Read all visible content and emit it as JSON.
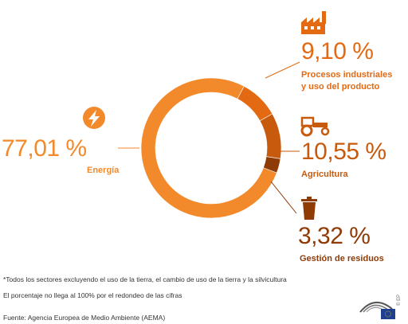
{
  "colors": {
    "energia": "#f28a2b",
    "procesos": "#e36a12",
    "agricultura": "#c75a0c",
    "residuos": "#8f3b06",
    "text_orange": "#f28a2b",
    "text_dark_orange": "#c75a0c",
    "text_brown": "#8f3b06"
  },
  "icons": {
    "energia": "lightning-bolt-icon",
    "procesos": "factory-icon",
    "agricultura": "tractor-icon",
    "residuos": "trash-can-icon",
    "logo": "european-parliament-logo-icon"
  },
  "chart_data": {
    "type": "pie",
    "donut": true,
    "series": [
      {
        "name": "Energía",
        "value_label": "77,01 %",
        "value": 77.01
      },
      {
        "name": "Procesos industriales y uso del producto",
        "value_label": "9,10 %",
        "value": 9.1
      },
      {
        "name": "Agricultura",
        "value_label": "10,55 %",
        "value": 10.55
      },
      {
        "name": "Gestión de residuos",
        "value_label": "3,32 %",
        "value": 3.32
      }
    ]
  },
  "labels": {
    "energia_pct": "77,01 %",
    "energia_name": "Energía",
    "procesos_pct": "9,10 %",
    "procesos_name_1": "Procesos industriales",
    "procesos_name_2": "y uso del producto",
    "agricultura_pct": "10,55 %",
    "agricultura_name": "Agricultura",
    "residuos_pct": "3,32 %",
    "residuos_name": "Gestión de residuos"
  },
  "footnotes": {
    "note1": "*Todos los sectores excluyendo el uso de la tierra, el cambio de uso de la tierra y la silvicultura",
    "note2": "El porcentaje no llega al 100% por el redondeo de las cifras",
    "source": "Fuente: Agencia Europea de Medio Ambiente (AEMA)"
  },
  "copyright": "© EP"
}
